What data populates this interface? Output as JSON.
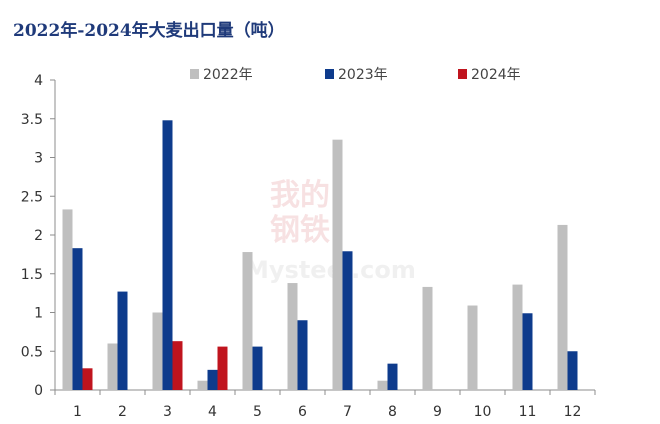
{
  "chart_data": {
    "type": "bar",
    "title": "2022年-2024年大麦出口量（吨）",
    "categories": [
      "1",
      "2",
      "3",
      "4",
      "5",
      "6",
      "7",
      "8",
      "9",
      "10",
      "11",
      "12"
    ],
    "series": [
      {
        "name": "2022年",
        "color": "#bfbfbf",
        "values": [
          2.33,
          0.6,
          1.0,
          0.12,
          1.78,
          1.38,
          3.23,
          0.12,
          1.33,
          1.09,
          1.36,
          2.13
        ]
      },
      {
        "name": "2023年",
        "color": "#0e3b8c",
        "values": [
          1.83,
          1.27,
          3.48,
          0.26,
          0.56,
          0.9,
          1.79,
          0.34,
          null,
          null,
          0.99,
          0.5
        ]
      },
      {
        "name": "2024年",
        "color": "#c0141e",
        "values": [
          0.28,
          null,
          0.63,
          0.56,
          null,
          null,
          null,
          null,
          null,
          null,
          null,
          null
        ]
      }
    ],
    "ylim": [
      0,
      4
    ],
    "yticks": [
      "0",
      "0.5",
      "1",
      "1.5",
      "2",
      "2.5",
      "3",
      "3.5",
      "4"
    ],
    "legend_position": "top",
    "grid": false
  },
  "watermark": {
    "line1": "我的",
    "line2": "钢铁",
    "text": "Mysteel.com"
  }
}
